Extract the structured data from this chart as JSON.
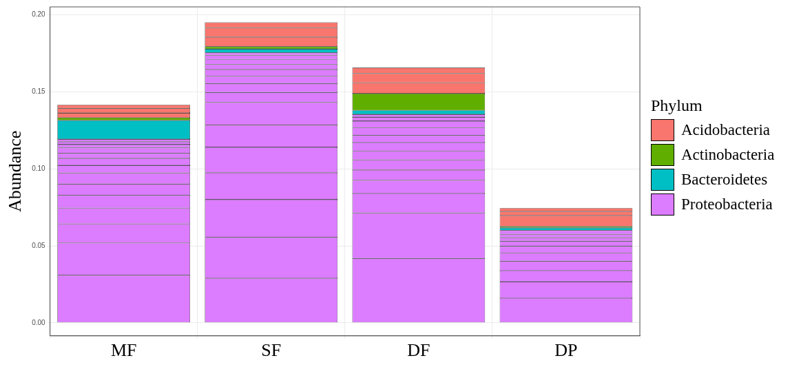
{
  "chart_data": {
    "type": "bar",
    "stacked": true,
    "ylabel": "Abundance",
    "legend_title": "Phylum",
    "legend": "right",
    "grid": true,
    "categories": [
      "MF",
      "SF",
      "DF",
      "DP"
    ],
    "ylim": [
      -0.0085,
      0.2052
    ],
    "yticks": [
      {
        "value": 0,
        "label": "0.00"
      },
      {
        "value": 0.05,
        "label": "0.05"
      },
      {
        "value": 0.1,
        "label": "0.10"
      },
      {
        "value": 0.15,
        "label": "0.15"
      },
      {
        "value": 0.2,
        "label": "0.20"
      }
    ],
    "series": [
      {
        "name": "Proteobacteria",
        "color": "#dc7cff",
        "values": [
          0.0309,
          0.0289,
          0.0418,
          0.016
        ]
      },
      {
        "color": "#dc7cff",
        "values": [
          0.021,
          0.0266,
          0.0295,
          0.0107
        ]
      },
      {
        "color": "#dc7cff",
        "values": [
          0.0123,
          0.0245,
          0.0127,
          0.0072
        ]
      },
      {
        "color": "#dc7cff",
        "values": [
          0.0103,
          0.0175,
          0.0087,
          0.0061
        ]
      },
      {
        "color": "#dc7cff",
        "values": [
          0.0083,
          0.0165,
          0.0066,
          0.0053
        ]
      },
      {
        "color": "#dc7cff",
        "values": [
          0.0073,
          0.0144,
          0.0064,
          0.0044
        ]
      },
      {
        "color": "#dc7cff",
        "values": [
          0.0071,
          0.0148,
          0.0058,
          0.0033
        ]
      },
      {
        "color": "#dc7cff",
        "values": [
          0.0051,
          0.0064,
          0.0056,
          0.0022
        ]
      },
      {
        "color": "#dc7cff",
        "values": [
          0.0046,
          0.0058,
          0.0046,
          0.0022
        ]
      },
      {
        "color": "#dc7cff",
        "values": [
          0.0032,
          0.0048,
          0.005,
          0.0026
        ]
      },
      {
        "color": "#dc7cff",
        "values": [
          0.0036,
          0.0042,
          0.0043,
          null
        ]
      },
      {
        "color": "#dc7cff",
        "values": [
          0.0021,
          0.0034,
          0.0026,
          null
        ]
      },
      {
        "color": "#dc7cff",
        "values": [
          0.0018,
          0.0033,
          0.0018,
          null
        ]
      },
      {
        "color": "#dc7cff",
        "values": [
          0.0017,
          0.0026,
          null,
          null
        ]
      },
      {
        "color": "#dc7cff",
        "values": [
          null,
          0.0017,
          null,
          null
        ]
      },
      {
        "name": "Bacteroidetes",
        "color": "#00bfc4",
        "values": [
          0.0122,
          0.0025,
          0.0026,
          0.0017
        ]
      },
      {
        "name": "Actinobacteria",
        "color": "#5fae00",
        "values": [
          0.0017,
          0.0015,
          0.0109,
          0.0009
        ]
      },
      {
        "name": "Acidobacteria",
        "color": "#f8766d",
        "values": [
          0.0031,
          0.0062,
          0.007,
          0.007
        ]
      },
      {
        "color": "#f8766d",
        "values": [
          0.003,
          0.006,
          0.0061,
          0.0027
        ]
      },
      {
        "color": "#f8766d",
        "values": [
          0.0023,
          0.0035,
          0.0037,
          0.0022
        ]
      }
    ]
  }
}
